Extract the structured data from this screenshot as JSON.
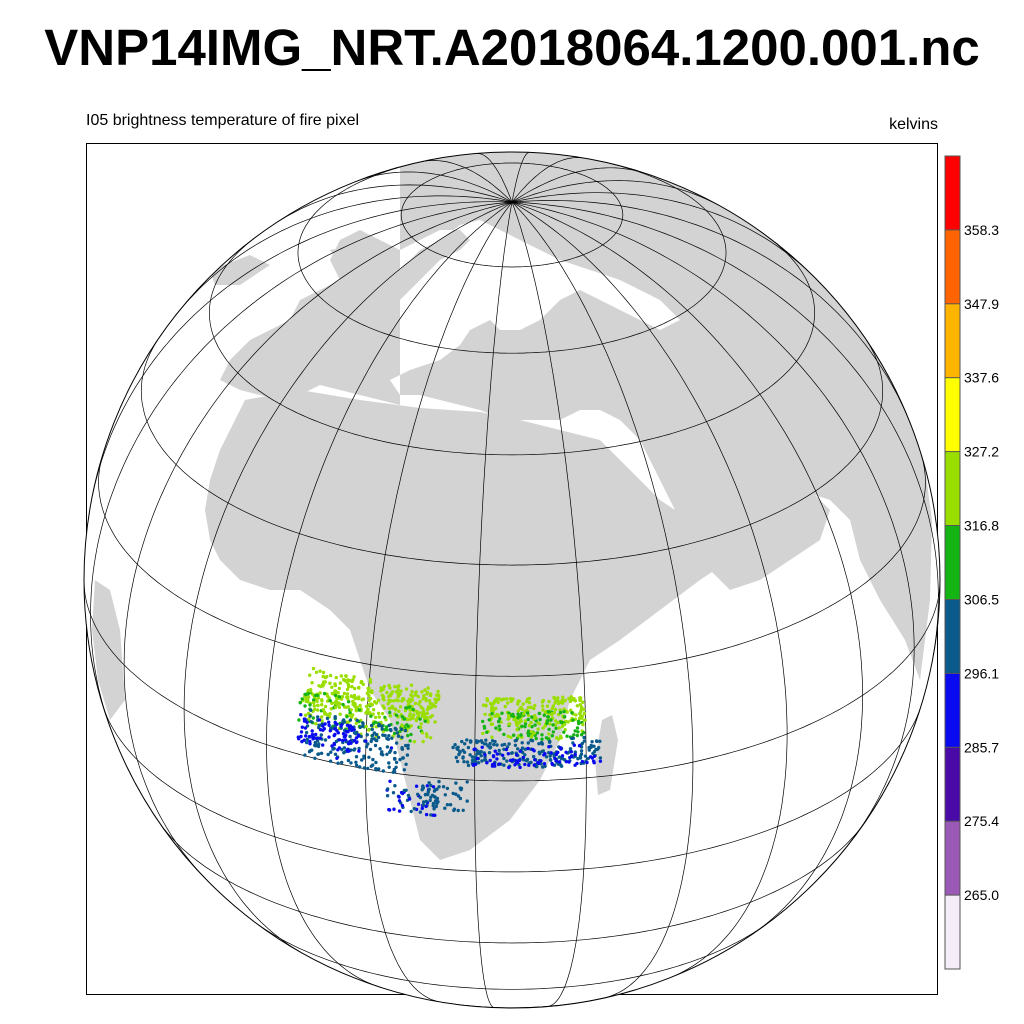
{
  "title": "VNP14IMG_NRT.A2018064.1200.001.nc",
  "variable_label": "I05 brightness temperature of fire pixel",
  "units_label": "kelvins",
  "colors": {
    "land": "#d3d3d3",
    "ocean": "#ffffff",
    "graticule": "#000000"
  },
  "colorbar": {
    "ticks": [
      "265.0",
      "275.4",
      "285.7",
      "296.1",
      "306.5",
      "316.8",
      "327.2",
      "337.6",
      "347.9",
      "358.3"
    ],
    "colors": [
      "#f5eef8",
      "#9b59b6",
      "#4a0aa8",
      "#0a0af0",
      "#0a5a8c",
      "#14b414",
      "#9ade00",
      "#ffff00",
      "#ffb400",
      "#ff6400",
      "#ff0000"
    ]
  },
  "fire_clusters": [
    {
      "temp": 322,
      "lon_range": [
        -9,
        10
      ],
      "lat_range": [
        8,
        13
      ],
      "n": 260
    },
    {
      "temp": 318,
      "lon_range": [
        -10,
        9
      ],
      "lat_range": [
        5,
        10
      ],
      "n": 200
    },
    {
      "temp": 300,
      "lon_range": [
        -9,
        6
      ],
      "lat_range": [
        0,
        7
      ],
      "n": 180
    },
    {
      "temp": 292,
      "lon_range": [
        -10,
        0
      ],
      "lat_range": [
        2,
        6
      ],
      "n": 80
    },
    {
      "temp": 322,
      "lon_range": [
        16,
        30
      ],
      "lat_range": [
        8,
        12
      ],
      "n": 160
    },
    {
      "temp": 316,
      "lon_range": [
        16,
        30
      ],
      "lat_range": [
        6,
        10
      ],
      "n": 140
    },
    {
      "temp": 300,
      "lon_range": [
        12,
        32
      ],
      "lat_range": [
        2,
        6
      ],
      "n": 200
    },
    {
      "temp": 292,
      "lon_range": [
        14,
        32
      ],
      "lat_range": [
        2,
        5
      ],
      "n": 80
    },
    {
      "temp": 296,
      "lon_range": [
        3,
        10
      ],
      "lat_range": [
        -6,
        -1
      ],
      "n": 60
    },
    {
      "temp": 300,
      "lon_range": [
        8,
        14
      ],
      "lat_range": [
        -5,
        0
      ],
      "n": 40
    }
  ]
}
